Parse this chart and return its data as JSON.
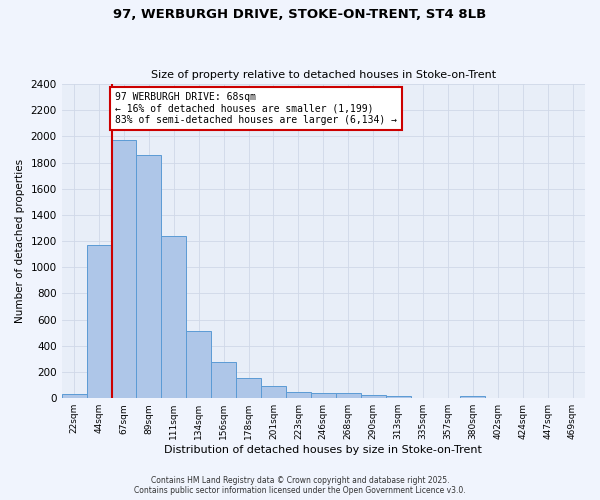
{
  "title_line1": "97, WERBURGH DRIVE, STOKE-ON-TRENT, ST4 8LB",
  "title_line2": "Size of property relative to detached houses in Stoke-on-Trent",
  "xlabel": "Distribution of detached houses by size in Stoke-on-Trent",
  "ylabel": "Number of detached properties",
  "categories": [
    "22sqm",
    "44sqm",
    "67sqm",
    "89sqm",
    "111sqm",
    "134sqm",
    "156sqm",
    "178sqm",
    "201sqm",
    "223sqm",
    "246sqm",
    "268sqm",
    "290sqm",
    "313sqm",
    "335sqm",
    "357sqm",
    "380sqm",
    "402sqm",
    "424sqm",
    "447sqm",
    "469sqm"
  ],
  "values": [
    30,
    1170,
    1975,
    1855,
    1240,
    515,
    275,
    155,
    90,
    50,
    42,
    40,
    25,
    20,
    0,
    0,
    18,
    0,
    0,
    0,
    0
  ],
  "bar_color": "#aec6e8",
  "bar_edge_color": "#5b9bd5",
  "property_line_x": 1.5,
  "annotation_text": "97 WERBURGH DRIVE: 68sqm\n← 16% of detached houses are smaller (1,199)\n83% of semi-detached houses are larger (6,134) →",
  "annotation_box_color": "#ffffff",
  "annotation_box_edge": "#cc0000",
  "red_line_color": "#cc0000",
  "grid_color": "#d0d8e8",
  "bg_color": "#e8eef8",
  "fig_bg_color": "#f0f4fd",
  "ylim": [
    0,
    2400
  ],
  "yticks": [
    0,
    200,
    400,
    600,
    800,
    1000,
    1200,
    1400,
    1600,
    1800,
    2000,
    2200,
    2400
  ],
  "footer_line1": "Contains HM Land Registry data © Crown copyright and database right 2025.",
  "footer_line2": "Contains public sector information licensed under the Open Government Licence v3.0."
}
